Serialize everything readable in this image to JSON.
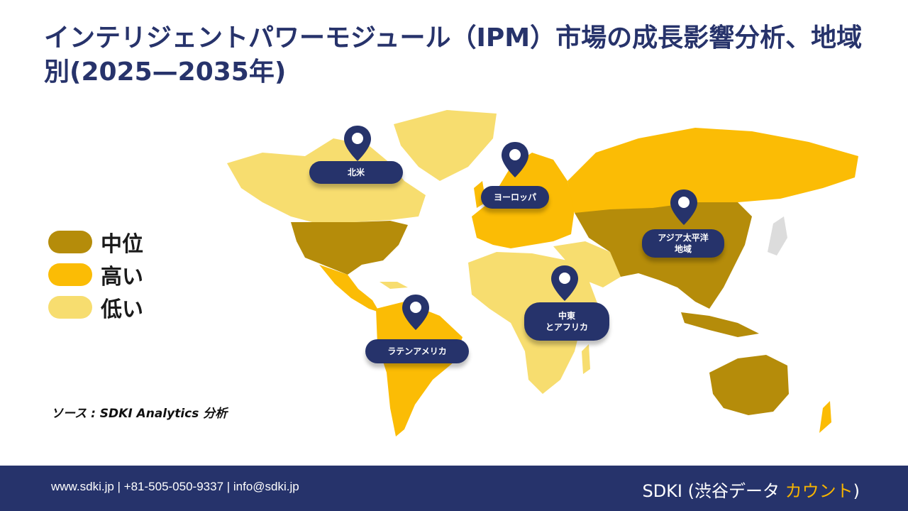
{
  "title": "インテリジェントパワーモジュール（IPM）市場の成長影響分析、地域別(2025—2035年)",
  "legend": [
    {
      "label": "中位",
      "color": "#b58c0a"
    },
    {
      "label": "高い",
      "color": "#fbbc05"
    },
    {
      "label": "低い",
      "color": "#f7dd6f"
    }
  ],
  "source": "ソース : SDKI Analytics 分析",
  "regions": {
    "north_america": "北米",
    "europe": "ヨーロッパ",
    "asia_pacific_line1": "アジア太平洋",
    "asia_pacific_line2": "地域",
    "mea_line1": "中東",
    "mea_line2": "とアフリカ",
    "latin_america": "ラテンアメリカ"
  },
  "footer": {
    "contact": "www.sdki.jp  | +81-505-050-9337 | info@sdki.jp",
    "brand_main": "SDKI (渋谷データ",
    "brand_accent": "カウント",
    "brand_close": ")"
  },
  "colors": {
    "navy": "#26336b",
    "medium": "#b58c0a",
    "high": "#fbbc05",
    "low": "#f7dd6f"
  }
}
